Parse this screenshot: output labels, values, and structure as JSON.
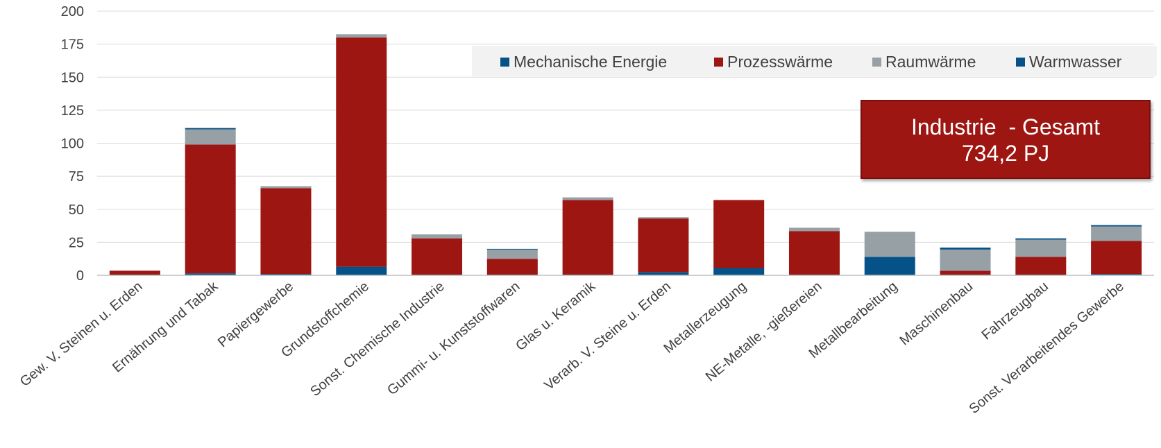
{
  "chart_data": {
    "type": "bar",
    "stacked": true,
    "title": "",
    "xlabel": "",
    "ylabel": "",
    "ylim": [
      0,
      200
    ],
    "yticks": [
      0,
      25,
      50,
      75,
      100,
      125,
      150,
      175,
      200
    ],
    "grid": true,
    "legend_position": "top-right",
    "categories": [
      "Gew. V. Steinen u. Erden",
      "Ernährung und Tabak",
      "Papiergewerbe",
      "Grundstoffchemie",
      "Sonst. Chemische Industrie",
      "Gummi- u. Kunststoffwaren",
      "Glas u. Keramik",
      "Verarb. V. Steine u. Erden",
      "Metallerzeugung",
      "NE-Metalle, -gießereien",
      "Metallbearbeitung",
      "Maschinenbau",
      "Fahrzeugbau",
      "Sonst. Verarbeitendes Gewerbe"
    ],
    "series": [
      {
        "name": "Mechanische Energie",
        "color": "#055289",
        "values": [
          0.5,
          1.5,
          1,
          6.5,
          0.5,
          0.5,
          0.5,
          2.5,
          5.5,
          0.5,
          14,
          0.5,
          0.5,
          1
        ]
      },
      {
        "name": "Prozesswärme",
        "color": "#9e1612",
        "values": [
          3,
          97.5,
          65,
          173.5,
          27.5,
          12,
          56.5,
          40.5,
          51.5,
          33,
          0,
          3,
          13.5,
          25
        ]
      },
      {
        "name": "Raumwärme",
        "color": "#97a0a5",
        "values": [
          0,
          11.5,
          1.5,
          2.5,
          3,
          7,
          2,
          1,
          0,
          2.5,
          19,
          16,
          13,
          11
        ]
      },
      {
        "name": "Warmwasser",
        "color": "#055289",
        "values": [
          0,
          1,
          0,
          0,
          0,
          0.5,
          0,
          0,
          0,
          0,
          0,
          1.5,
          1,
          1
        ]
      }
    ],
    "callout": {
      "line1": "Industrie  - Gesamt",
      "line2": "734,2 PJ",
      "color": "#9e1612"
    }
  }
}
